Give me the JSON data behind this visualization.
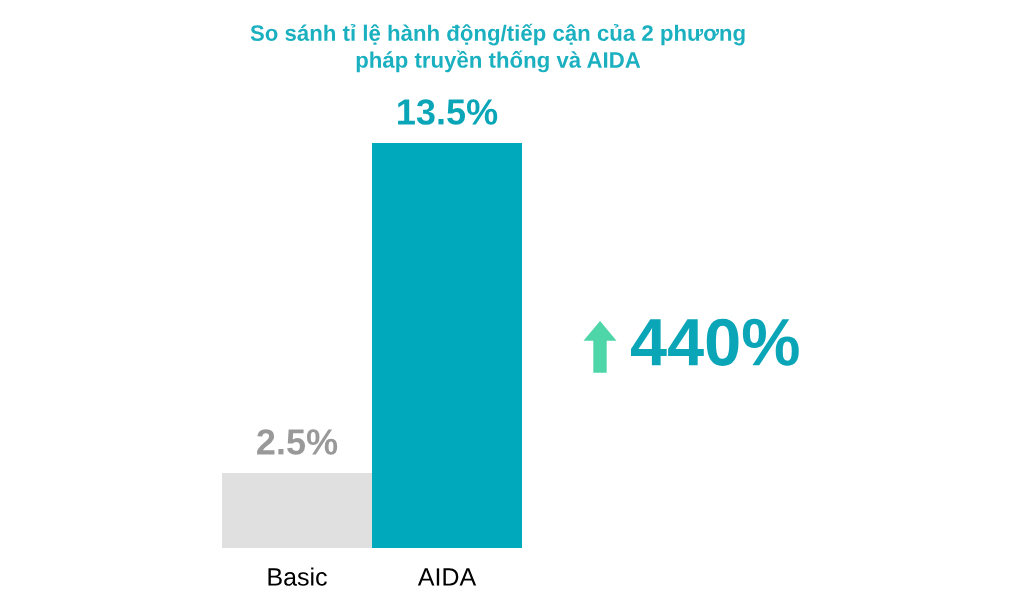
{
  "chart_data": {
    "type": "bar",
    "title": "So sánh tỉ lệ hành động/tiếp cận của 2 phương\npháp truyền thống và AIDA",
    "categories": [
      "Basic",
      "AIDA"
    ],
    "values": [
      2.5,
      13.5
    ],
    "colors": [
      "#e0e0e0",
      "#00a9bb"
    ],
    "value_labels": [
      "2.5%",
      "13.5%"
    ],
    "annotations": [
      "440%"
    ],
    "tick_labels": "x",
    "grid": false
  }
}
